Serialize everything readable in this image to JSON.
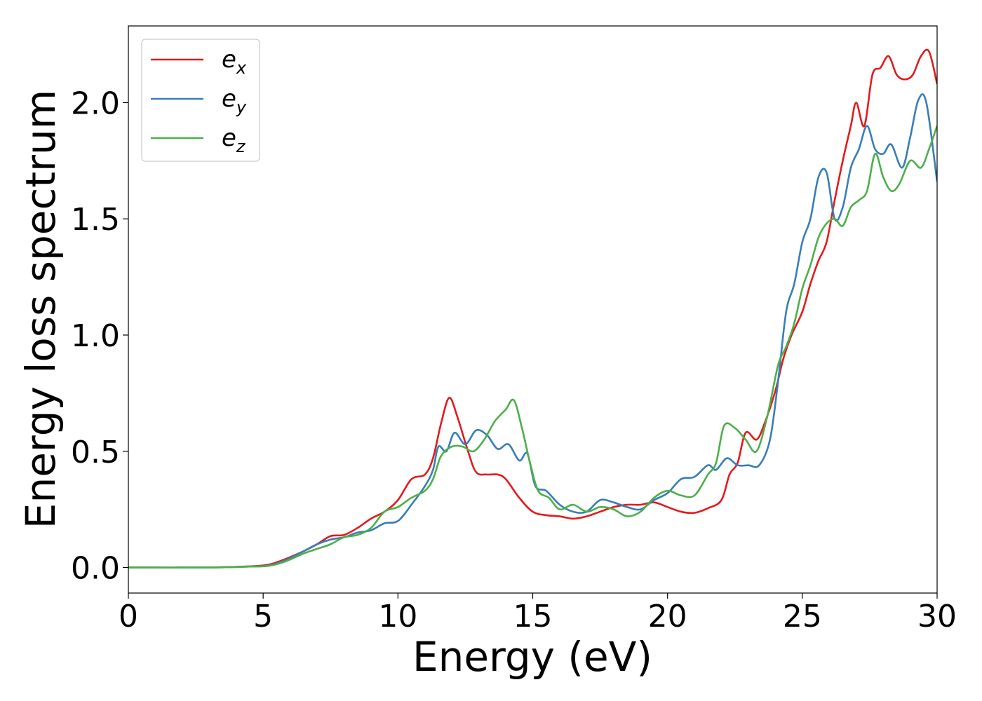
{
  "chart_data": {
    "type": "line",
    "title": "",
    "xlabel": "Energy (eV)",
    "ylabel": "Energy loss spectrum",
    "xlim": [
      0,
      30
    ],
    "ylim": [
      -0.11,
      2.33
    ],
    "xticks": [
      0,
      5,
      10,
      15,
      20,
      25,
      30
    ],
    "xtick_labels": [
      "0",
      "5",
      "10",
      "15",
      "20",
      "25",
      "30"
    ],
    "yticks": [
      0.0,
      0.5,
      1.0,
      1.5,
      2.0
    ],
    "ytick_labels": [
      "0.0",
      "0.5",
      "1.0",
      "1.5",
      "2.0"
    ],
    "grid": false,
    "legend_position": "top-left",
    "series": [
      {
        "name": "e_x",
        "legend_base": "e",
        "legend_sub": "x",
        "color": "#e41a1c",
        "points": [
          [
            0,
            0.0
          ],
          [
            3,
            0.0
          ],
          [
            4.5,
            0.005
          ],
          [
            5.2,
            0.012
          ],
          [
            5.8,
            0.035
          ],
          [
            6.5,
            0.07
          ],
          [
            7.0,
            0.1
          ],
          [
            7.5,
            0.135
          ],
          [
            8.0,
            0.14
          ],
          [
            8.5,
            0.17
          ],
          [
            9.0,
            0.21
          ],
          [
            9.5,
            0.24
          ],
          [
            10.0,
            0.29
          ],
          [
            10.5,
            0.38
          ],
          [
            11.0,
            0.4
          ],
          [
            11.3,
            0.47
          ],
          [
            11.6,
            0.62
          ],
          [
            11.9,
            0.73
          ],
          [
            12.2,
            0.65
          ],
          [
            12.6,
            0.5
          ],
          [
            12.9,
            0.41
          ],
          [
            13.3,
            0.4
          ],
          [
            13.7,
            0.4
          ],
          [
            14.0,
            0.38
          ],
          [
            14.5,
            0.3
          ],
          [
            15.0,
            0.24
          ],
          [
            15.5,
            0.225
          ],
          [
            16.0,
            0.22
          ],
          [
            16.5,
            0.21
          ],
          [
            17.0,
            0.22
          ],
          [
            17.5,
            0.24
          ],
          [
            18.0,
            0.26
          ],
          [
            18.5,
            0.27
          ],
          [
            19.0,
            0.27
          ],
          [
            19.5,
            0.28
          ],
          [
            20.0,
            0.26
          ],
          [
            20.5,
            0.24
          ],
          [
            21.0,
            0.235
          ],
          [
            21.5,
            0.255
          ],
          [
            22.0,
            0.29
          ],
          [
            22.3,
            0.4
          ],
          [
            22.6,
            0.45
          ],
          [
            22.9,
            0.58
          ],
          [
            23.3,
            0.55
          ],
          [
            23.6,
            0.62
          ],
          [
            24.0,
            0.76
          ],
          [
            24.3,
            0.9
          ],
          [
            24.6,
            1.0
          ],
          [
            25.0,
            1.1
          ],
          [
            25.3,
            1.22
          ],
          [
            25.6,
            1.32
          ],
          [
            25.9,
            1.4
          ],
          [
            26.2,
            1.58
          ],
          [
            26.5,
            1.75
          ],
          [
            26.8,
            1.9
          ],
          [
            27.0,
            2.0
          ],
          [
            27.3,
            1.9
          ],
          [
            27.6,
            2.12
          ],
          [
            27.9,
            2.15
          ],
          [
            28.2,
            2.2
          ],
          [
            28.5,
            2.12
          ],
          [
            28.8,
            2.1
          ],
          [
            29.1,
            2.12
          ],
          [
            29.4,
            2.2
          ],
          [
            29.7,
            2.22
          ],
          [
            30.0,
            2.08
          ]
        ]
      },
      {
        "name": "e_y",
        "legend_base": "e",
        "legend_sub": "y",
        "color": "#377eb8",
        "points": [
          [
            0,
            0.0
          ],
          [
            3,
            0.0
          ],
          [
            4.5,
            0.004
          ],
          [
            5.2,
            0.008
          ],
          [
            5.8,
            0.03
          ],
          [
            6.5,
            0.07
          ],
          [
            7.0,
            0.1
          ],
          [
            7.5,
            0.12
          ],
          [
            8.0,
            0.13
          ],
          [
            8.5,
            0.15
          ],
          [
            9.0,
            0.16
          ],
          [
            9.5,
            0.19
          ],
          [
            10.0,
            0.2
          ],
          [
            10.5,
            0.27
          ],
          [
            11.0,
            0.35
          ],
          [
            11.3,
            0.42
          ],
          [
            11.5,
            0.52
          ],
          [
            11.8,
            0.5
          ],
          [
            12.1,
            0.58
          ],
          [
            12.5,
            0.53
          ],
          [
            12.9,
            0.59
          ],
          [
            13.3,
            0.57
          ],
          [
            13.7,
            0.51
          ],
          [
            14.1,
            0.53
          ],
          [
            14.5,
            0.46
          ],
          [
            14.8,
            0.49
          ],
          [
            15.1,
            0.35
          ],
          [
            15.5,
            0.33
          ],
          [
            16.0,
            0.27
          ],
          [
            16.5,
            0.24
          ],
          [
            17.0,
            0.24
          ],
          [
            17.5,
            0.29
          ],
          [
            18.0,
            0.28
          ],
          [
            18.5,
            0.26
          ],
          [
            19.0,
            0.25
          ],
          [
            19.5,
            0.29
          ],
          [
            20.0,
            0.32
          ],
          [
            20.5,
            0.38
          ],
          [
            21.0,
            0.39
          ],
          [
            21.5,
            0.44
          ],
          [
            21.8,
            0.42
          ],
          [
            22.2,
            0.47
          ],
          [
            22.6,
            0.44
          ],
          [
            23.0,
            0.44
          ],
          [
            23.4,
            0.44
          ],
          [
            23.8,
            0.55
          ],
          [
            24.1,
            0.8
          ],
          [
            24.4,
            1.1
          ],
          [
            24.7,
            1.22
          ],
          [
            25.0,
            1.4
          ],
          [
            25.3,
            1.5
          ],
          [
            25.6,
            1.68
          ],
          [
            25.9,
            1.7
          ],
          [
            26.2,
            1.5
          ],
          [
            26.5,
            1.55
          ],
          [
            26.8,
            1.72
          ],
          [
            27.1,
            1.8
          ],
          [
            27.4,
            1.9
          ],
          [
            27.7,
            1.8
          ],
          [
            28.0,
            1.78
          ],
          [
            28.3,
            1.82
          ],
          [
            28.7,
            1.72
          ],
          [
            29.0,
            1.85
          ],
          [
            29.3,
            2.01
          ],
          [
            29.6,
            2.0
          ],
          [
            30.0,
            1.66
          ]
        ]
      },
      {
        "name": "e_z",
        "legend_base": "e",
        "legend_sub": "z",
        "color": "#4daf4a",
        "points": [
          [
            0,
            0.0
          ],
          [
            3,
            0.0
          ],
          [
            4.5,
            0.004
          ],
          [
            5.2,
            0.007
          ],
          [
            5.8,
            0.025
          ],
          [
            6.5,
            0.06
          ],
          [
            7.0,
            0.08
          ],
          [
            7.5,
            0.1
          ],
          [
            8.0,
            0.13
          ],
          [
            8.5,
            0.14
          ],
          [
            9.0,
            0.17
          ],
          [
            9.5,
            0.24
          ],
          [
            10.0,
            0.26
          ],
          [
            10.5,
            0.3
          ],
          [
            11.0,
            0.33
          ],
          [
            11.3,
            0.38
          ],
          [
            11.6,
            0.48
          ],
          [
            12.0,
            0.52
          ],
          [
            12.4,
            0.52
          ],
          [
            12.8,
            0.5
          ],
          [
            13.2,
            0.55
          ],
          [
            13.6,
            0.63
          ],
          [
            14.0,
            0.68
          ],
          [
            14.3,
            0.72
          ],
          [
            14.6,
            0.6
          ],
          [
            14.9,
            0.45
          ],
          [
            15.2,
            0.33
          ],
          [
            15.6,
            0.3
          ],
          [
            16.0,
            0.25
          ],
          [
            16.5,
            0.27
          ],
          [
            17.0,
            0.24
          ],
          [
            17.5,
            0.26
          ],
          [
            18.0,
            0.25
          ],
          [
            18.5,
            0.22
          ],
          [
            19.0,
            0.24
          ],
          [
            19.5,
            0.3
          ],
          [
            20.0,
            0.33
          ],
          [
            20.5,
            0.31
          ],
          [
            21.0,
            0.31
          ],
          [
            21.5,
            0.4
          ],
          [
            21.8,
            0.45
          ],
          [
            22.1,
            0.61
          ],
          [
            22.5,
            0.6
          ],
          [
            22.9,
            0.55
          ],
          [
            23.3,
            0.5
          ],
          [
            23.7,
            0.65
          ],
          [
            24.1,
            0.87
          ],
          [
            24.4,
            0.95
          ],
          [
            24.7,
            1.05
          ],
          [
            25.0,
            1.2
          ],
          [
            25.3,
            1.3
          ],
          [
            25.6,
            1.42
          ],
          [
            25.9,
            1.48
          ],
          [
            26.2,
            1.5
          ],
          [
            26.5,
            1.47
          ],
          [
            26.8,
            1.55
          ],
          [
            27.1,
            1.58
          ],
          [
            27.4,
            1.62
          ],
          [
            27.7,
            1.78
          ],
          [
            28.0,
            1.68
          ],
          [
            28.3,
            1.62
          ],
          [
            28.6,
            1.65
          ],
          [
            29.0,
            1.75
          ],
          [
            29.4,
            1.72
          ],
          [
            29.7,
            1.8
          ],
          [
            30.0,
            1.9
          ]
        ]
      }
    ]
  }
}
